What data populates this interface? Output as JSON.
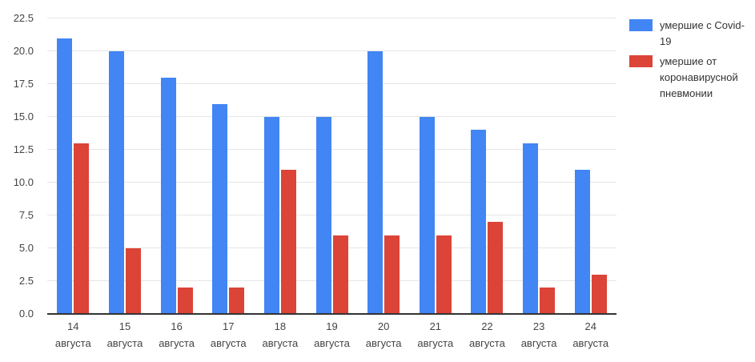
{
  "chart_data": {
    "type": "bar",
    "categories": [
      "14 августа",
      "15 августа",
      "16 августа",
      "17 августа",
      "18 августа",
      "19 августа",
      "20 августа",
      "21 августа",
      "22 августа",
      "23 августа",
      "24 августа"
    ],
    "series": [
      {
        "name": "умершие с Covid-19",
        "color": "#4285F4",
        "values": [
          21,
          20,
          18,
          16,
          15,
          15,
          20,
          15,
          14,
          13,
          11
        ]
      },
      {
        "name": "умершие от коронавирусной пневмонии",
        "color": "#DB4437",
        "values": [
          13,
          5,
          2,
          2,
          11,
          6,
          6,
          6,
          7,
          2,
          3
        ]
      }
    ],
    "ylim": [
      0,
      22.5
    ],
    "ytick_step": 2.5,
    "yticks": [
      "0.0",
      "2.5",
      "5.0",
      "7.5",
      "10.0",
      "12.5",
      "15.0",
      "17.5",
      "20.0",
      "22.5"
    ],
    "grid": true,
    "legend_position": "right"
  },
  "colors": {
    "background": "#ffffff",
    "gridline": "#e6e6e6",
    "axis_line": "#333333",
    "tick_text": "#444444",
    "legend_text": "#333333"
  }
}
